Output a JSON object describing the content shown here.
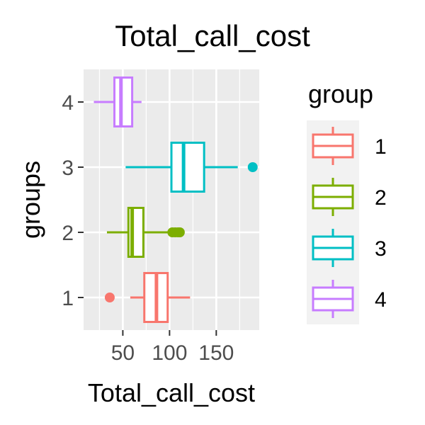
{
  "chart_data": {
    "type": "boxplot",
    "orientation": "horizontal",
    "title": "Total_call_cost",
    "xlabel": "Total_call_cost",
    "ylabel": "groups",
    "xlim": [
      8,
      196
    ],
    "xticks": [
      50,
      100,
      150
    ],
    "categories": [
      "1",
      "2",
      "3",
      "4"
    ],
    "grid": true,
    "legend": {
      "title": "group",
      "placement": "right"
    },
    "series": [
      {
        "name": "1",
        "color": "#F8766D",
        "min": 58,
        "q1": 73,
        "median": 86,
        "q3": 98,
        "max": 122,
        "outliers": [
          36
        ]
      },
      {
        "name": "2",
        "color": "#7CAE00",
        "min": 33,
        "q1": 56,
        "median": 60,
        "q3": 72,
        "max": 100,
        "outliers": [
          103,
          106,
          109,
          111
        ]
      },
      {
        "name": "3",
        "color": "#00BFC4",
        "min": 53,
        "q1": 102,
        "median": 115,
        "q3": 137,
        "max": 173,
        "outliers": [
          189
        ]
      },
      {
        "name": "4",
        "color": "#C77CFF",
        "min": 19,
        "q1": 41,
        "median": 48,
        "q3": 60,
        "max": 70,
        "outliers": []
      }
    ]
  }
}
